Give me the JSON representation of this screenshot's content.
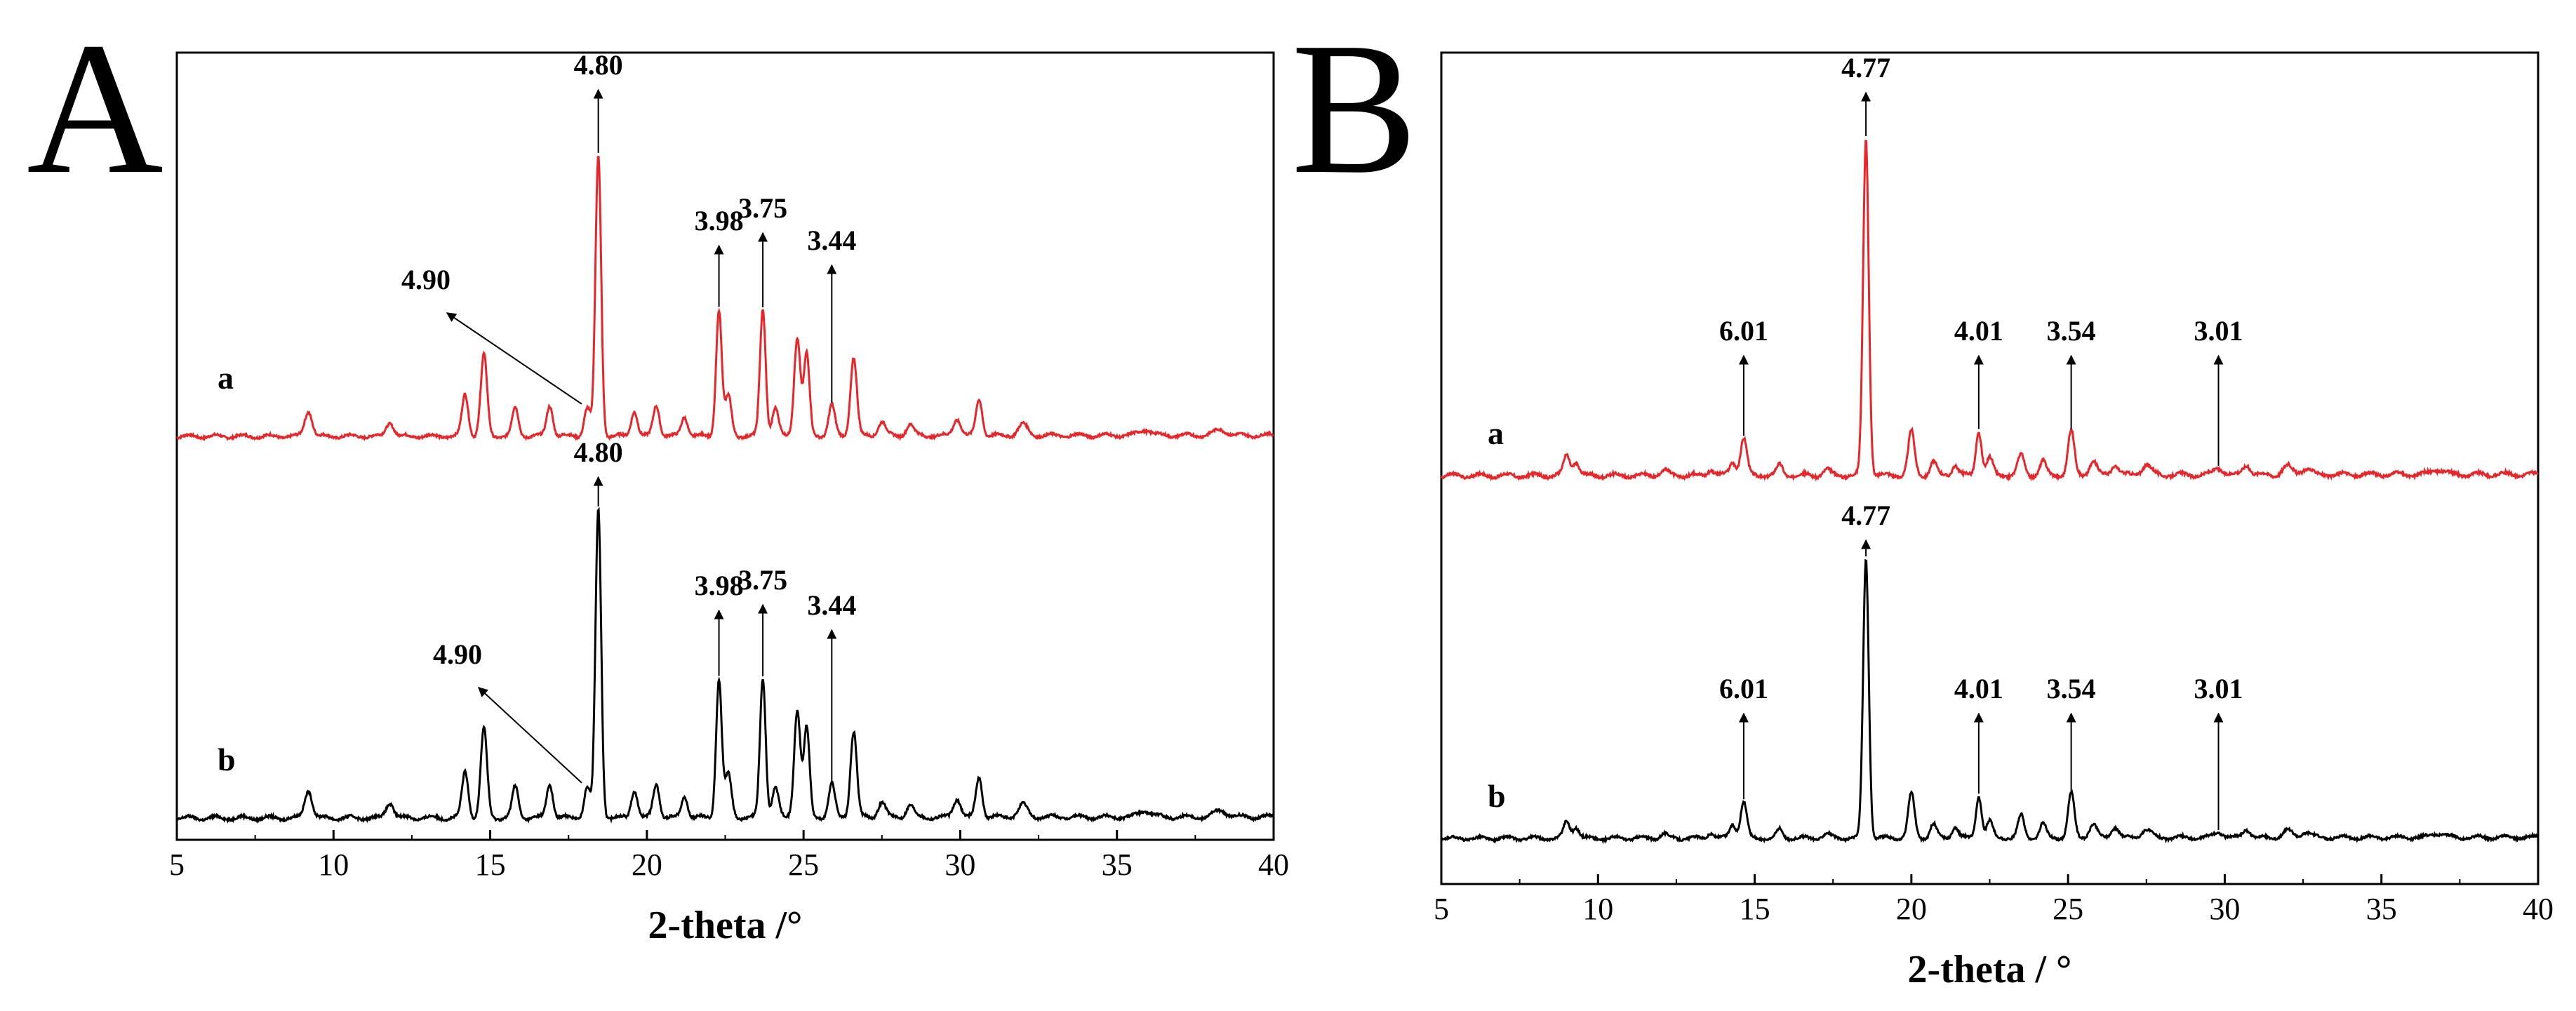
{
  "chart_data": [
    {
      "type": "line",
      "panel_label": "A",
      "xlabel": "2-theta /°",
      "ylabel": "",
      "xlim": [
        5,
        40
      ],
      "x_ticks": [
        "5",
        "10",
        "15",
        "20",
        "25",
        "30",
        "35",
        "40"
      ],
      "grid": false,
      "series": [
        {
          "name": "a",
          "color": "#e8262a",
          "peaks": [
            {
              "x": 9.2,
              "h": 0.09,
              "w": 0.12
            },
            {
              "x": 11.8,
              "h": 0.05,
              "w": 0.12
            },
            {
              "x": 14.2,
              "h": 0.15,
              "w": 0.1
            },
            {
              "x": 14.8,
              "h": 0.29,
              "w": 0.1
            },
            {
              "x": 15.8,
              "h": 0.1,
              "w": 0.1
            },
            {
              "x": 16.9,
              "h": 0.11,
              "w": 0.1
            },
            {
              "x": 18.1,
              "h": 0.1,
              "w": 0.1
            },
            {
              "x": 18.45,
              "h": 1.0,
              "w": 0.09
            },
            {
              "x": 19.6,
              "h": 0.09,
              "w": 0.1
            },
            {
              "x": 20.3,
              "h": 0.11,
              "w": 0.1
            },
            {
              "x": 21.2,
              "h": 0.07,
              "w": 0.1
            },
            {
              "x": 22.3,
              "h": 0.45,
              "w": 0.09
            },
            {
              "x": 22.6,
              "h": 0.14,
              "w": 0.1
            },
            {
              "x": 23.7,
              "h": 0.45,
              "w": 0.09
            },
            {
              "x": 24.1,
              "h": 0.1,
              "w": 0.1
            },
            {
              "x": 24.8,
              "h": 0.35,
              "w": 0.1
            },
            {
              "x": 25.1,
              "h": 0.29,
              "w": 0.09
            },
            {
              "x": 25.9,
              "h": 0.11,
              "w": 0.1
            },
            {
              "x": 26.6,
              "h": 0.28,
              "w": 0.1
            },
            {
              "x": 27.5,
              "h": 0.05,
              "w": 0.12
            },
            {
              "x": 28.4,
              "h": 0.04,
              "w": 0.12
            },
            {
              "x": 29.9,
              "h": 0.06,
              "w": 0.12
            },
            {
              "x": 30.6,
              "h": 0.13,
              "w": 0.1
            },
            {
              "x": 32.0,
              "h": 0.04,
              "w": 0.15
            },
            {
              "x": 35.9,
              "h": 0.02,
              "w": 0.2
            },
            {
              "x": 38.3,
              "h": 0.02,
              "w": 0.2
            }
          ]
        },
        {
          "name": "b",
          "color": "#000000",
          "peaks": [
            {
              "x": 9.2,
              "h": 0.09,
              "w": 0.12
            },
            {
              "x": 11.8,
              "h": 0.05,
              "w": 0.12
            },
            {
              "x": 14.2,
              "h": 0.15,
              "w": 0.1
            },
            {
              "x": 14.8,
              "h": 0.29,
              "w": 0.1
            },
            {
              "x": 15.8,
              "h": 0.1,
              "w": 0.1
            },
            {
              "x": 16.9,
              "h": 0.11,
              "w": 0.1
            },
            {
              "x": 18.1,
              "h": 0.1,
              "w": 0.1
            },
            {
              "x": 18.45,
              "h": 1.0,
              "w": 0.09
            },
            {
              "x": 19.6,
              "h": 0.09,
              "w": 0.1
            },
            {
              "x": 20.3,
              "h": 0.11,
              "w": 0.1
            },
            {
              "x": 21.2,
              "h": 0.07,
              "w": 0.1
            },
            {
              "x": 22.3,
              "h": 0.45,
              "w": 0.09
            },
            {
              "x": 22.6,
              "h": 0.14,
              "w": 0.1
            },
            {
              "x": 23.7,
              "h": 0.45,
              "w": 0.09
            },
            {
              "x": 24.1,
              "h": 0.1,
              "w": 0.1
            },
            {
              "x": 24.8,
              "h": 0.35,
              "w": 0.1
            },
            {
              "x": 25.1,
              "h": 0.29,
              "w": 0.09
            },
            {
              "x": 25.9,
              "h": 0.11,
              "w": 0.1
            },
            {
              "x": 26.6,
              "h": 0.28,
              "w": 0.1
            },
            {
              "x": 27.5,
              "h": 0.05,
              "w": 0.12
            },
            {
              "x": 28.4,
              "h": 0.04,
              "w": 0.12
            },
            {
              "x": 29.9,
              "h": 0.06,
              "w": 0.12
            },
            {
              "x": 30.6,
              "h": 0.13,
              "w": 0.1
            },
            {
              "x": 32.0,
              "h": 0.04,
              "w": 0.15
            },
            {
              "x": 35.9,
              "h": 0.02,
              "w": 0.2
            },
            {
              "x": 38.3,
              "h": 0.02,
              "w": 0.2
            }
          ]
        }
      ],
      "annotations": [
        {
          "series": "a",
          "label": "4.80",
          "x": 18.45,
          "style": "vertical"
        },
        {
          "series": "a",
          "label": "4.90",
          "x": 18.1,
          "style": "diagonal"
        },
        {
          "series": "a",
          "label": "3.98",
          "x": 22.3,
          "style": "vertical"
        },
        {
          "series": "a",
          "label": "3.75",
          "x": 23.7,
          "style": "vertical"
        },
        {
          "series": "a",
          "label": "3.44",
          "x": 25.9,
          "style": "vertical"
        },
        {
          "series": "b",
          "label": "4.80",
          "x": 18.45,
          "style": "vertical"
        },
        {
          "series": "b",
          "label": "4.90",
          "x": 18.1,
          "style": "diagonal"
        },
        {
          "series": "b",
          "label": "3.98",
          "x": 22.3,
          "style": "vertical"
        },
        {
          "series": "b",
          "label": "3.75",
          "x": 23.7,
          "style": "vertical"
        },
        {
          "series": "b",
          "label": "3.44",
          "x": 25.9,
          "style": "vertical"
        }
      ]
    },
    {
      "type": "line",
      "panel_label": "B",
      "xlabel": "2-theta / °",
      "ylabel": "",
      "xlim": [
        5,
        40
      ],
      "x_ticks": [
        "5",
        "10",
        "15",
        "20",
        "25",
        "30",
        "35",
        "40"
      ],
      "grid": false,
      "series": [
        {
          "name": "a",
          "color": "#e8262a",
          "peaks": [
            {
              "x": 9.0,
              "h": 0.06,
              "w": 0.1
            },
            {
              "x": 9.3,
              "h": 0.04,
              "w": 0.1
            },
            {
              "x": 12.1,
              "h": 0.015,
              "w": 0.12
            },
            {
              "x": 13.6,
              "h": 0.02,
              "w": 0.1
            },
            {
              "x": 14.3,
              "h": 0.04,
              "w": 0.1
            },
            {
              "x": 14.65,
              "h": 0.11,
              "w": 0.1
            },
            {
              "x": 15.8,
              "h": 0.03,
              "w": 0.1
            },
            {
              "x": 17.3,
              "h": 0.015,
              "w": 0.12
            },
            {
              "x": 18.55,
              "h": 1.0,
              "w": 0.09
            },
            {
              "x": 20.0,
              "h": 0.13,
              "w": 0.1
            },
            {
              "x": 20.7,
              "h": 0.04,
              "w": 0.1
            },
            {
              "x": 21.4,
              "h": 0.03,
              "w": 0.1
            },
            {
              "x": 22.15,
              "h": 0.13,
              "w": 0.09
            },
            {
              "x": 22.5,
              "h": 0.05,
              "w": 0.1
            },
            {
              "x": 23.5,
              "h": 0.06,
              "w": 0.1
            },
            {
              "x": 24.2,
              "h": 0.04,
              "w": 0.1
            },
            {
              "x": 25.1,
              "h": 0.13,
              "w": 0.1
            },
            {
              "x": 25.8,
              "h": 0.04,
              "w": 0.12
            },
            {
              "x": 26.5,
              "h": 0.03,
              "w": 0.12
            },
            {
              "x": 27.5,
              "h": 0.03,
              "w": 0.15
            },
            {
              "x": 29.8,
              "h": 0.02,
              "w": 0.15
            },
            {
              "x": 30.7,
              "h": 0.03,
              "w": 0.12
            },
            {
              "x": 32.0,
              "h": 0.025,
              "w": 0.15
            },
            {
              "x": 32.6,
              "h": 0.02,
              "w": 0.15
            },
            {
              "x": 36.8,
              "h": 0.015,
              "w": 0.2
            }
          ]
        },
        {
          "name": "b",
          "color": "#000000",
          "peaks": [
            {
              "x": 9.0,
              "h": 0.06,
              "w": 0.1
            },
            {
              "x": 9.3,
              "h": 0.04,
              "w": 0.1
            },
            {
              "x": 12.1,
              "h": 0.015,
              "w": 0.12
            },
            {
              "x": 13.6,
              "h": 0.02,
              "w": 0.1
            },
            {
              "x": 14.3,
              "h": 0.05,
              "w": 0.1
            },
            {
              "x": 14.65,
              "h": 0.13,
              "w": 0.1
            },
            {
              "x": 15.8,
              "h": 0.03,
              "w": 0.1
            },
            {
              "x": 17.3,
              "h": 0.015,
              "w": 0.12
            },
            {
              "x": 18.55,
              "h": 1.0,
              "w": 0.09
            },
            {
              "x": 20.0,
              "h": 0.16,
              "w": 0.1
            },
            {
              "x": 20.7,
              "h": 0.05,
              "w": 0.1
            },
            {
              "x": 21.4,
              "h": 0.04,
              "w": 0.1
            },
            {
              "x": 22.15,
              "h": 0.15,
              "w": 0.09
            },
            {
              "x": 22.5,
              "h": 0.06,
              "w": 0.1
            },
            {
              "x": 23.5,
              "h": 0.08,
              "w": 0.1
            },
            {
              "x": 24.2,
              "h": 0.05,
              "w": 0.1
            },
            {
              "x": 25.1,
              "h": 0.16,
              "w": 0.1
            },
            {
              "x": 25.8,
              "h": 0.05,
              "w": 0.12
            },
            {
              "x": 26.5,
              "h": 0.04,
              "w": 0.12
            },
            {
              "x": 27.5,
              "h": 0.03,
              "w": 0.15
            },
            {
              "x": 29.8,
              "h": 0.02,
              "w": 0.15
            },
            {
              "x": 30.7,
              "h": 0.03,
              "w": 0.12
            },
            {
              "x": 32.0,
              "h": 0.025,
              "w": 0.15
            },
            {
              "x": 32.6,
              "h": 0.02,
              "w": 0.15
            },
            {
              "x": 36.8,
              "h": 0.015,
              "w": 0.2
            }
          ]
        }
      ],
      "annotations": [
        {
          "series": "a",
          "label": "4.77",
          "x": 18.55,
          "style": "vertical"
        },
        {
          "series": "a",
          "label": "6.01",
          "x": 14.65,
          "style": "vertical"
        },
        {
          "series": "a",
          "label": "4.01",
          "x": 22.15,
          "style": "vertical"
        },
        {
          "series": "a",
          "label": "3.54",
          "x": 25.1,
          "style": "vertical"
        },
        {
          "series": "a",
          "label": "3.01",
          "x": 29.8,
          "style": "vertical"
        },
        {
          "series": "b",
          "label": "4.77",
          "x": 18.55,
          "style": "vertical"
        },
        {
          "series": "b",
          "label": "6.01",
          "x": 14.65,
          "style": "vertical"
        },
        {
          "series": "b",
          "label": "4.01",
          "x": 22.15,
          "style": "vertical"
        },
        {
          "series": "b",
          "label": "3.54",
          "x": 25.1,
          "style": "vertical"
        },
        {
          "series": "b",
          "label": "3.01",
          "x": 29.8,
          "style": "vertical"
        }
      ]
    }
  ]
}
